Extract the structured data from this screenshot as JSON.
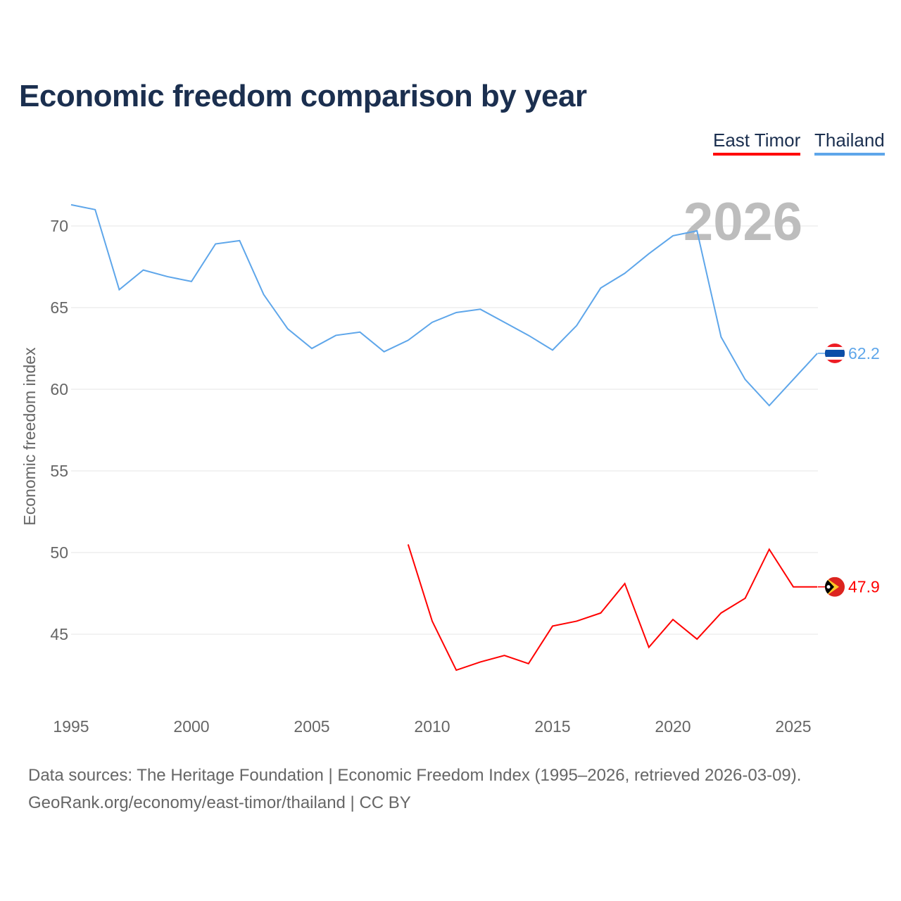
{
  "title": "Economic freedom comparison by year",
  "legend": [
    {
      "label": "East Timor",
      "color": "#ff0000"
    },
    {
      "label": "Thailand",
      "color": "#5ea6ea"
    }
  ],
  "year_watermark": "2026",
  "footer": {
    "line1": "Data sources: The Heritage Foundation | Economic Freedom Index (1995–2026, retrieved 2026-03-09).",
    "line2": "GeoRank.org/economy/east-timor/thailand | CC BY"
  },
  "chart_data": {
    "type": "line",
    "title": "Economic freedom comparison by year",
    "xlabel": "",
    "ylabel": "Economic freedom index",
    "xticks": [
      1995,
      2000,
      2005,
      2010,
      2015,
      2020,
      2025
    ],
    "yticks": [
      45,
      50,
      55,
      60,
      65,
      70
    ],
    "xlim": [
      1995,
      2026
    ],
    "ylim": [
      40.3,
      72.7
    ],
    "grid": true,
    "legend_position": "top-right",
    "series": [
      {
        "name": "Thailand",
        "color": "#5ea6ea",
        "end_label": "62.2",
        "x": [
          1995,
          1996,
          1997,
          1998,
          1999,
          2000,
          2001,
          2002,
          2003,
          2004,
          2005,
          2006,
          2007,
          2008,
          2009,
          2010,
          2011,
          2012,
          2013,
          2014,
          2015,
          2016,
          2017,
          2018,
          2019,
          2020,
          2021,
          2022,
          2023,
          2024,
          2025,
          2026
        ],
        "y": [
          71.3,
          71.0,
          66.1,
          67.3,
          66.9,
          66.6,
          68.9,
          69.1,
          65.8,
          63.7,
          62.5,
          63.3,
          63.5,
          62.3,
          63.0,
          64.1,
          64.7,
          64.9,
          64.1,
          63.3,
          62.4,
          63.9,
          66.2,
          67.1,
          68.3,
          69.4,
          69.7,
          63.2,
          60.6,
          59.0,
          60.6,
          62.2
        ]
      },
      {
        "name": "East Timor",
        "color": "#ff0000",
        "end_label": "47.9",
        "x": [
          2009,
          2010,
          2011,
          2012,
          2013,
          2014,
          2015,
          2016,
          2017,
          2018,
          2019,
          2020,
          2021,
          2022,
          2023,
          2024,
          2025,
          2026
        ],
        "y": [
          50.5,
          45.8,
          42.8,
          43.3,
          43.7,
          43.2,
          45.5,
          45.8,
          46.3,
          48.1,
          44.2,
          45.9,
          44.7,
          46.3,
          47.2,
          50.2,
          47.9,
          47.9
        ]
      }
    ]
  }
}
